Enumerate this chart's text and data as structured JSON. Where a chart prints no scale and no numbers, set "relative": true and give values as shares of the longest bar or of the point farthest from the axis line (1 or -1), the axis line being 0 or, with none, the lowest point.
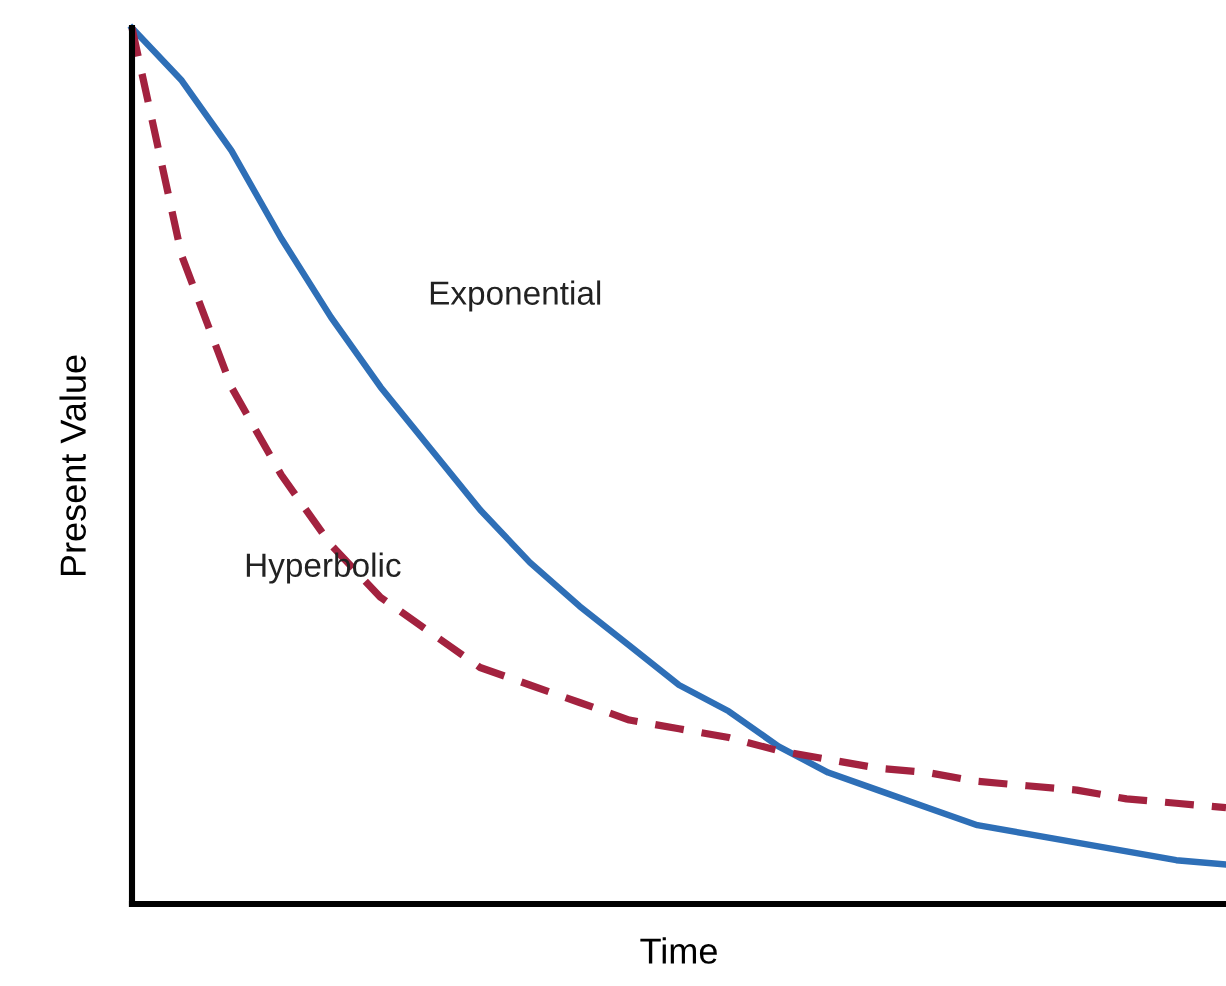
{
  "chart_data": {
    "type": "line",
    "relative": true,
    "xlabel": "Time",
    "ylabel": "Present Value",
    "legend": false,
    "categories": [
      null,
      null,
      null,
      null,
      null,
      null,
      null,
      null,
      null,
      null,
      null,
      null,
      null,
      null,
      null,
      null,
      null,
      null,
      null,
      null,
      null,
      null,
      null
    ],
    "series": [
      {
        "name": "Exponential",
        "color": "#2e6fb7",
        "line_style": "solid",
        "values": [
          1.0,
          0.94,
          0.86,
          0.76,
          0.67,
          0.59,
          0.52,
          0.45,
          0.39,
          0.34,
          0.295,
          0.25,
          0.22,
          0.18,
          0.15,
          0.13,
          0.11,
          0.09,
          0.08,
          0.07,
          0.06,
          0.05,
          0.045
        ]
      },
      {
        "name": "Hyperbolic",
        "color": "#a3223f",
        "line_style": "dashed",
        "values": [
          1.0,
          0.74,
          0.59,
          0.49,
          0.41,
          0.35,
          0.31,
          0.27,
          0.25,
          0.23,
          0.21,
          0.2,
          0.19,
          0.175,
          0.165,
          0.155,
          0.15,
          0.14,
          0.135,
          0.13,
          0.12,
          0.115,
          0.11
        ]
      }
    ]
  }
}
